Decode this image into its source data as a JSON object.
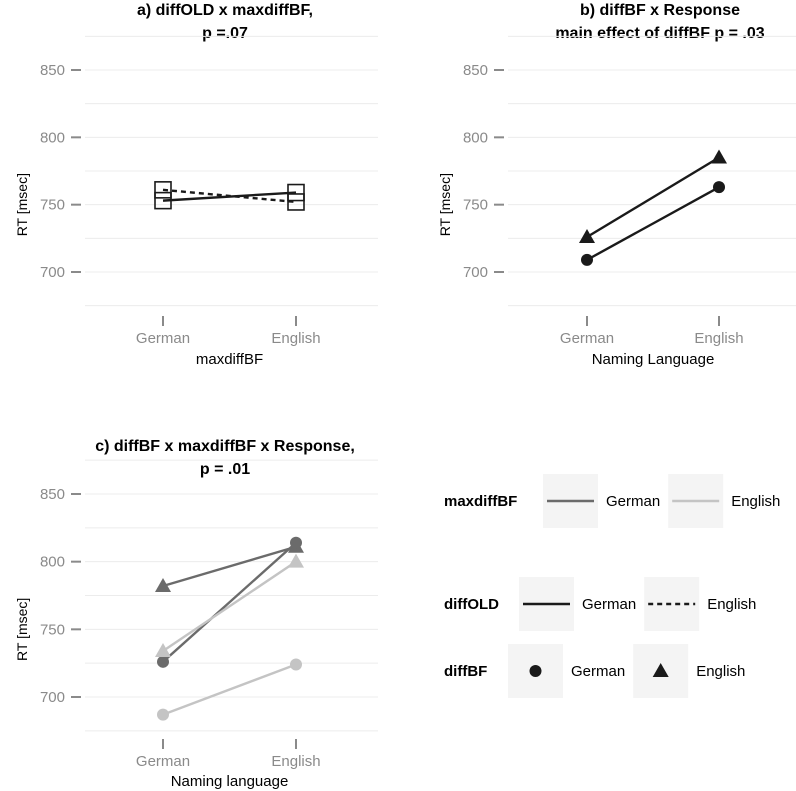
{
  "chart_data": [
    {
      "type": "line",
      "title": [
        "a) diffOLD x maxdiffBF,",
        "p =.07"
      ],
      "xlabel": "maxdiffBF",
      "ylabel": "RT [msec]",
      "categories": [
        "German",
        "English"
      ],
      "yticks": [
        700,
        750,
        800,
        850
      ],
      "ylim": [
        675,
        860
      ],
      "series": [
        {
          "name": "German",
          "values": [
            753,
            759
          ],
          "marker": "square",
          "color": "#1a1a1a",
          "dash": "solid"
        },
        {
          "name": "English",
          "values": [
            761,
            752
          ],
          "marker": "square",
          "color": "#1a1a1a",
          "dash": "dashed"
        }
      ]
    },
    {
      "type": "line",
      "title": [
        "b) diffBF x Response",
        "main effect of diffBF p = .03"
      ],
      "xlabel": "Naming Language",
      "ylabel": "RT [msec]",
      "categories": [
        "German",
        "English"
      ],
      "yticks": [
        700,
        750,
        800,
        850
      ],
      "ylim": [
        675,
        860
      ],
      "series": [
        {
          "name": "German",
          "values": [
            709,
            763
          ],
          "marker": "circle",
          "color": "#1a1a1a",
          "dash": "solid"
        },
        {
          "name": "English",
          "values": [
            726,
            785
          ],
          "marker": "triangle",
          "color": "#1a1a1a",
          "dash": "solid"
        }
      ]
    },
    {
      "type": "line",
      "title": [
        "c) diffBF x maxdiffBF x Response,",
        "p = .01"
      ],
      "xlabel": "Naming language",
      "ylabel": "RT [msec]",
      "categories": [
        "German",
        "English"
      ],
      "yticks": [
        700,
        750,
        800,
        850
      ],
      "ylim": [
        675,
        860
      ],
      "series": [
        {
          "values": [
            782,
            811
          ],
          "marker": "triangle",
          "color": "#6b6b6b"
        },
        {
          "values": [
            726,
            814
          ],
          "marker": "circle",
          "color": "#6b6b6b"
        },
        {
          "values": [
            734,
            800
          ],
          "marker": "triangle",
          "color": "#c4c4c4"
        },
        {
          "values": [
            687,
            724
          ],
          "marker": "circle",
          "color": "#c4c4c4"
        }
      ]
    }
  ],
  "legends": [
    {
      "title": "maxdiffBF",
      "entries": [
        {
          "label": "German",
          "color": "#6b6b6b",
          "dash": "solid",
          "kind": "line"
        },
        {
          "label": "English",
          "color": "#c4c4c4",
          "dash": "solid",
          "kind": "line"
        }
      ]
    },
    {
      "title": "diffOLD",
      "entries": [
        {
          "label": "German",
          "color": "#1a1a1a",
          "dash": "solid",
          "kind": "line"
        },
        {
          "label": "English",
          "color": "#1a1a1a",
          "dash": "dashed",
          "kind": "line"
        }
      ]
    },
    {
      "title": "diffBF",
      "entries": [
        {
          "label": "German",
          "color": "#1a1a1a",
          "marker": "circle",
          "kind": "point"
        },
        {
          "label": "English",
          "color": "#1a1a1a",
          "marker": "triangle",
          "kind": "point"
        }
      ]
    }
  ]
}
